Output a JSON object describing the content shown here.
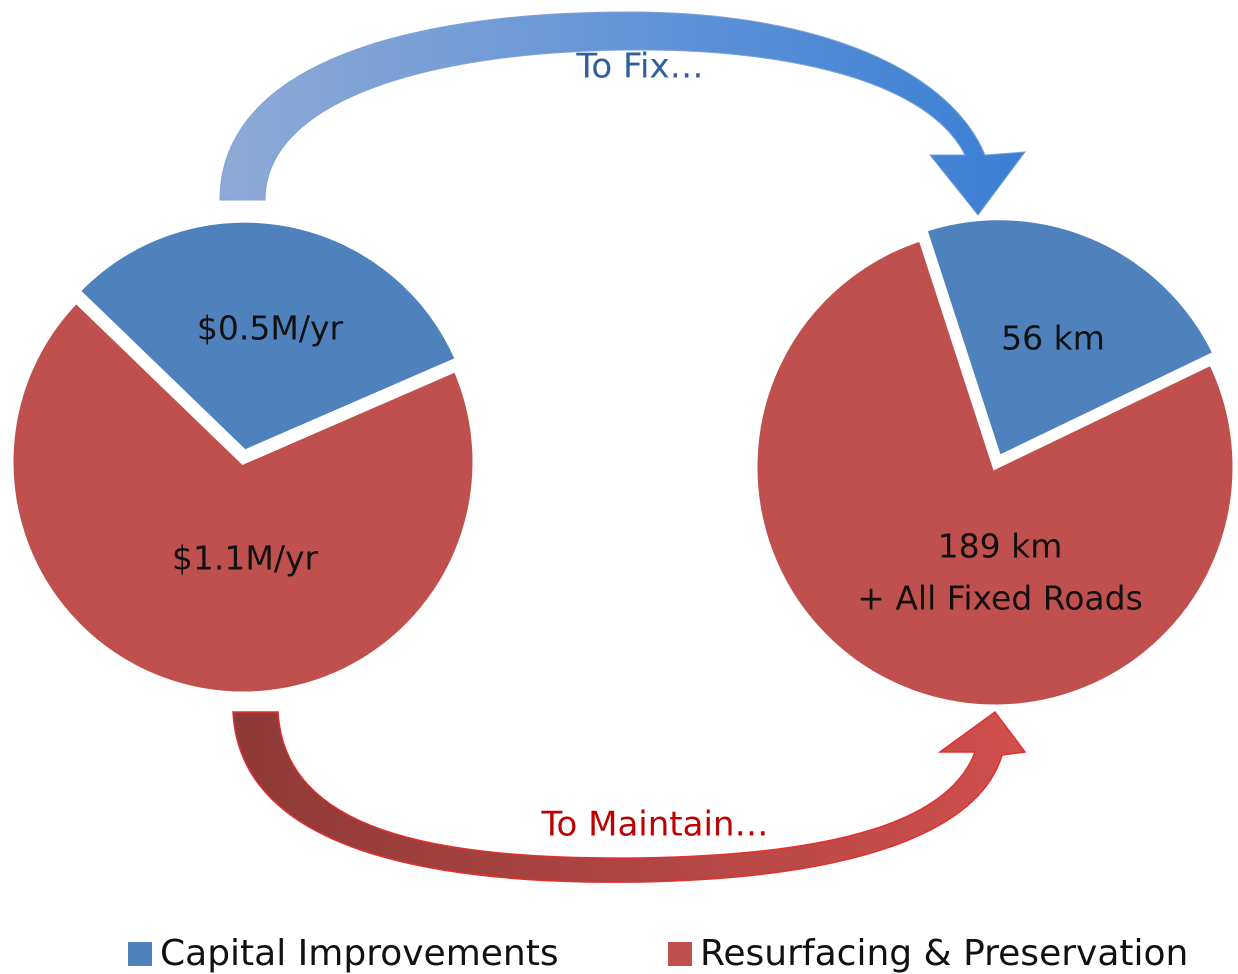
{
  "chart_data": {
    "type": "pie",
    "categories": [
      "Capital Improvements",
      "Resurfacing & Preservation"
    ],
    "colors": [
      "#4f81bd",
      "#c0504d"
    ],
    "series": [
      {
        "values": [
          0.5,
          1.1
        ],
        "value_labels": [
          "$0.5M/yr",
          "$1.1M/yr"
        ]
      },
      {
        "values": [
          56,
          189
        ],
        "value_labels": [
          "56 km",
          "189 km"
        ],
        "annotation": "+ All Fixed Roads"
      }
    ],
    "annotations": [
      "To Fix…",
      "To Maintain…"
    ]
  }
}
